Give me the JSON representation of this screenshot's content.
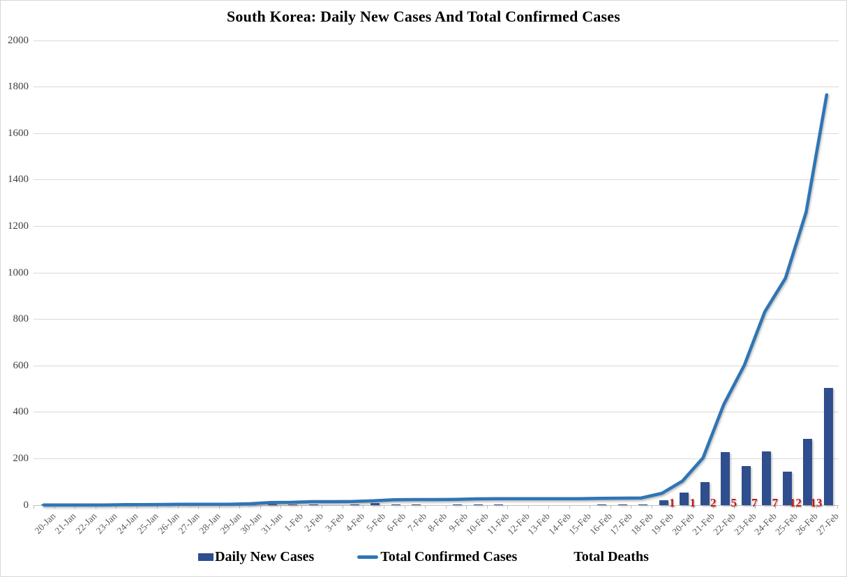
{
  "title": "South Korea: Daily New Cases And Total Confirmed Cases",
  "colors": {
    "bar": "#2e4e8e",
    "line": "#2e75b6",
    "deaths": "#c41414",
    "grid": "#d9d9d9",
    "axis": "#bfbfbf",
    "y_label": "#3f3f3f",
    "x_label": "#595959"
  },
  "legend": {
    "items": [
      {
        "label": "Daily New Cases",
        "swatch": "bar-swatch"
      },
      {
        "label": "Total Confirmed Cases",
        "swatch": "line-swatch"
      },
      {
        "label": "Total Deaths",
        "swatch": "invisible-swatch"
      }
    ]
  },
  "chart_data": {
    "type": "bar",
    "subtype": "bar-and-line-combo",
    "title": "South Korea: Daily New Cases And Total Confirmed Cases",
    "xlabel": "",
    "ylabel": "",
    "ylim": [
      0,
      2000
    ],
    "yticks": [
      0,
      200,
      400,
      600,
      800,
      1000,
      1200,
      1400,
      1600,
      1800,
      2000
    ],
    "grid": true,
    "legend_position": "bottom",
    "categories": [
      "20-Jan",
      "21-Jan",
      "22-Jan",
      "23-Jan",
      "24-Jan",
      "25-Jan",
      "26-Jan",
      "27-Jan",
      "28-Jan",
      "29-Jan",
      "30-Jan",
      "31-Jan",
      "1-Feb",
      "2-Feb",
      "3-Feb",
      "4-Feb",
      "5-Feb",
      "6-Feb",
      "7-Feb",
      "8-Feb",
      "9-Feb",
      "10-Feb",
      "11-Feb",
      "12-Feb",
      "13-Feb",
      "14-Feb",
      "15-Feb",
      "16-Feb",
      "17-Feb",
      "18-Feb",
      "19-Feb",
      "20-Feb",
      "21-Feb",
      "22-Feb",
      "23-Feb",
      "24-Feb",
      "25-Feb",
      "26-Feb",
      "27-Feb"
    ],
    "series": [
      {
        "name": "Daily New Cases",
        "type": "bar",
        "color": "#2e4e8e",
        "values": [
          1,
          0,
          0,
          0,
          1,
          0,
          1,
          1,
          0,
          0,
          2,
          5,
          1,
          3,
          0,
          1,
          10,
          4,
          1,
          0,
          1,
          2,
          1,
          0,
          0,
          0,
          0,
          1,
          1,
          1,
          20,
          53,
          100,
          229,
          169,
          231,
          144,
          284,
          505
        ]
      },
      {
        "name": "Total Confirmed Cases",
        "type": "line",
        "color": "#2e75b6",
        "values": [
          1,
          1,
          1,
          1,
          2,
          2,
          3,
          4,
          4,
          4,
          6,
          11,
          12,
          15,
          15,
          16,
          19,
          23,
          24,
          24,
          25,
          27,
          28,
          28,
          28,
          28,
          28,
          29,
          30,
          31,
          51,
          104,
          204,
          433,
          602,
          833,
          977,
          1261,
          1766
        ]
      },
      {
        "name": "Total Deaths",
        "type": "data-labels",
        "color": "#c41414",
        "values": [
          null,
          null,
          null,
          null,
          null,
          null,
          null,
          null,
          null,
          null,
          null,
          null,
          null,
          null,
          null,
          null,
          null,
          null,
          null,
          null,
          null,
          null,
          null,
          null,
          null,
          null,
          null,
          null,
          null,
          null,
          null,
          1,
          1,
          2,
          5,
          7,
          7,
          12,
          13
        ]
      }
    ]
  }
}
